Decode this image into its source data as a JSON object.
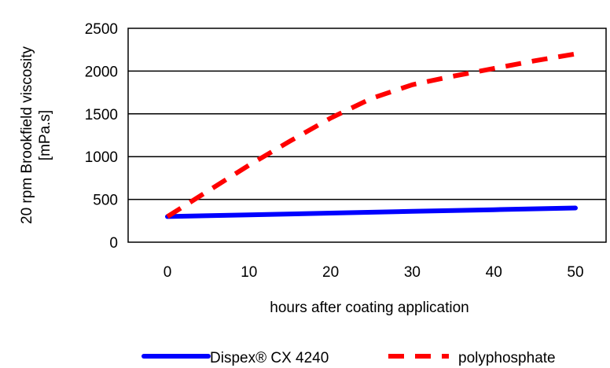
{
  "chart_data": {
    "type": "line",
    "xlabel": "hours after coating application",
    "ylabel_lines": [
      "20 rpm Brookfield viscosity",
      "[mPa.s]"
    ],
    "xlim": [
      0,
      50
    ],
    "ylim": [
      0,
      2500
    ],
    "xticks": [
      0,
      10,
      20,
      30,
      40,
      50
    ],
    "yticks": [
      0,
      500,
      1000,
      1500,
      2000,
      2500
    ],
    "grid": "horizontal",
    "legend_position": "bottom",
    "series": [
      {
        "name": "Dispex® CX 4240",
        "color": "#0000ff",
        "style": "solid",
        "x": [
          0,
          10,
          20,
          30,
          40,
          50
        ],
        "y": [
          300,
          320,
          340,
          360,
          380,
          400
        ]
      },
      {
        "name": "polyphosphate",
        "color": "#ff0000",
        "style": "dashed",
        "x": [
          0,
          5,
          10,
          15,
          20,
          25,
          30,
          35,
          40,
          45,
          50
        ],
        "y": [
          300,
          600,
          900,
          1180,
          1450,
          1680,
          1840,
          1940,
          2030,
          2120,
          2200
        ]
      }
    ]
  }
}
